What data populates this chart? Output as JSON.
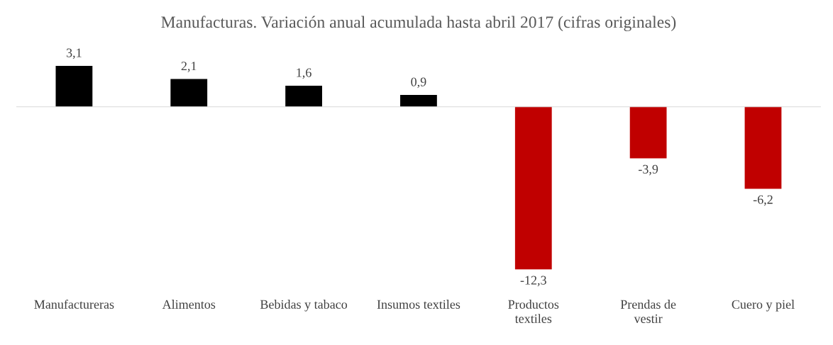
{
  "chart_data": {
    "type": "bar",
    "title": "Manufacturas. Variación anual acumulada hasta abril 2017 (cifras originales)",
    "categories": [
      "Manufactureras",
      "Alimentos",
      "Bebidas y tabaco",
      "Insumos textiles",
      "Productos textiles",
      "Prendas de vestir",
      "Cuero y piel"
    ],
    "values": [
      3.1,
      2.1,
      1.6,
      0.9,
      -12.3,
      -3.9,
      -6.2
    ],
    "colors": [
      "#000000",
      "#000000",
      "#000000",
      "#000000",
      "#c00000",
      "#c00000",
      "#c00000"
    ],
    "value_labels": [
      "3,1",
      "2,1",
      "1,6",
      "0,9",
      "-12,3",
      "-3,9",
      "-6,2"
    ],
    "legend": false
  }
}
